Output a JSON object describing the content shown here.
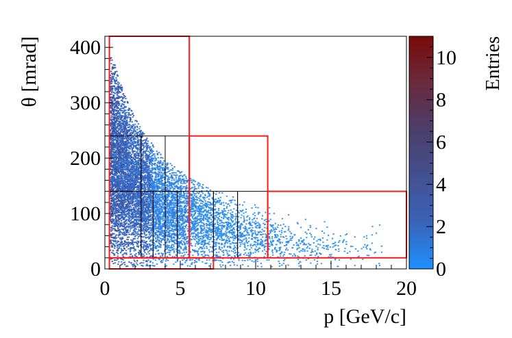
{
  "chart_data": {
    "type": "heatmap",
    "title": "",
    "xlabel": "p [GeV/c]",
    "ylabel": "θ [mrad]",
    "zlabel": "Entries",
    "xlim": [
      0,
      20
    ],
    "ylim": [
      0,
      420
    ],
    "zlim": [
      0,
      11
    ],
    "xticks": [
      0,
      5,
      10,
      15,
      20
    ],
    "yticks": [
      0,
      100,
      200,
      300,
      400
    ],
    "zticks": [
      0,
      2,
      4,
      6,
      8,
      10
    ],
    "colorscale": [
      "#1e90ff",
      "#3a63b8",
      "#43508f",
      "#4b3e6a",
      "#6a2a3c",
      "#7a0a0a"
    ],
    "distribution_notes": "Scatter density concentrated at low p (0.3-3 GeV/c) and theta 30-250 mrad, falling off toward high p; max theta decreases with p.",
    "red_regions": [
      {
        "p": [
          0.3,
          5.6
        ],
        "theta": [
          20,
          420
        ]
      },
      {
        "p": [
          5.6,
          10.8
        ],
        "theta": [
          20,
          240
        ]
      },
      {
        "p": [
          10.8,
          20
        ],
        "theta": [
          20,
          140
        ]
      },
      {
        "p": [
          0.3,
          7.2
        ],
        "theta": [
          0,
          20
        ]
      }
    ],
    "black_bins": [
      {
        "p": [
          0.3,
          2.4
        ],
        "theta": [
          140,
          240
        ]
      },
      {
        "p": [
          2.4,
          4.0
        ],
        "theta": [
          140,
          240
        ]
      },
      {
        "p": [
          4.0,
          5.6
        ],
        "theta": [
          140,
          240
        ]
      },
      {
        "p": [
          0.3,
          2.4
        ],
        "theta": [
          20,
          140
        ]
      },
      {
        "p": [
          2.4,
          3.2
        ],
        "theta": [
          20,
          140
        ]
      },
      {
        "p": [
          3.2,
          4.0
        ],
        "theta": [
          20,
          140
        ]
      },
      {
        "p": [
          4.0,
          4.8
        ],
        "theta": [
          20,
          140
        ]
      },
      {
        "p": [
          4.8,
          5.6
        ],
        "theta": [
          20,
          140
        ]
      },
      {
        "p": [
          5.6,
          7.2
        ],
        "theta": [
          20,
          140
        ]
      },
      {
        "p": [
          7.2,
          8.8
        ],
        "theta": [
          20,
          140
        ]
      },
      {
        "p": [
          8.8,
          10.8
        ],
        "theta": [
          20,
          140
        ]
      }
    ]
  }
}
